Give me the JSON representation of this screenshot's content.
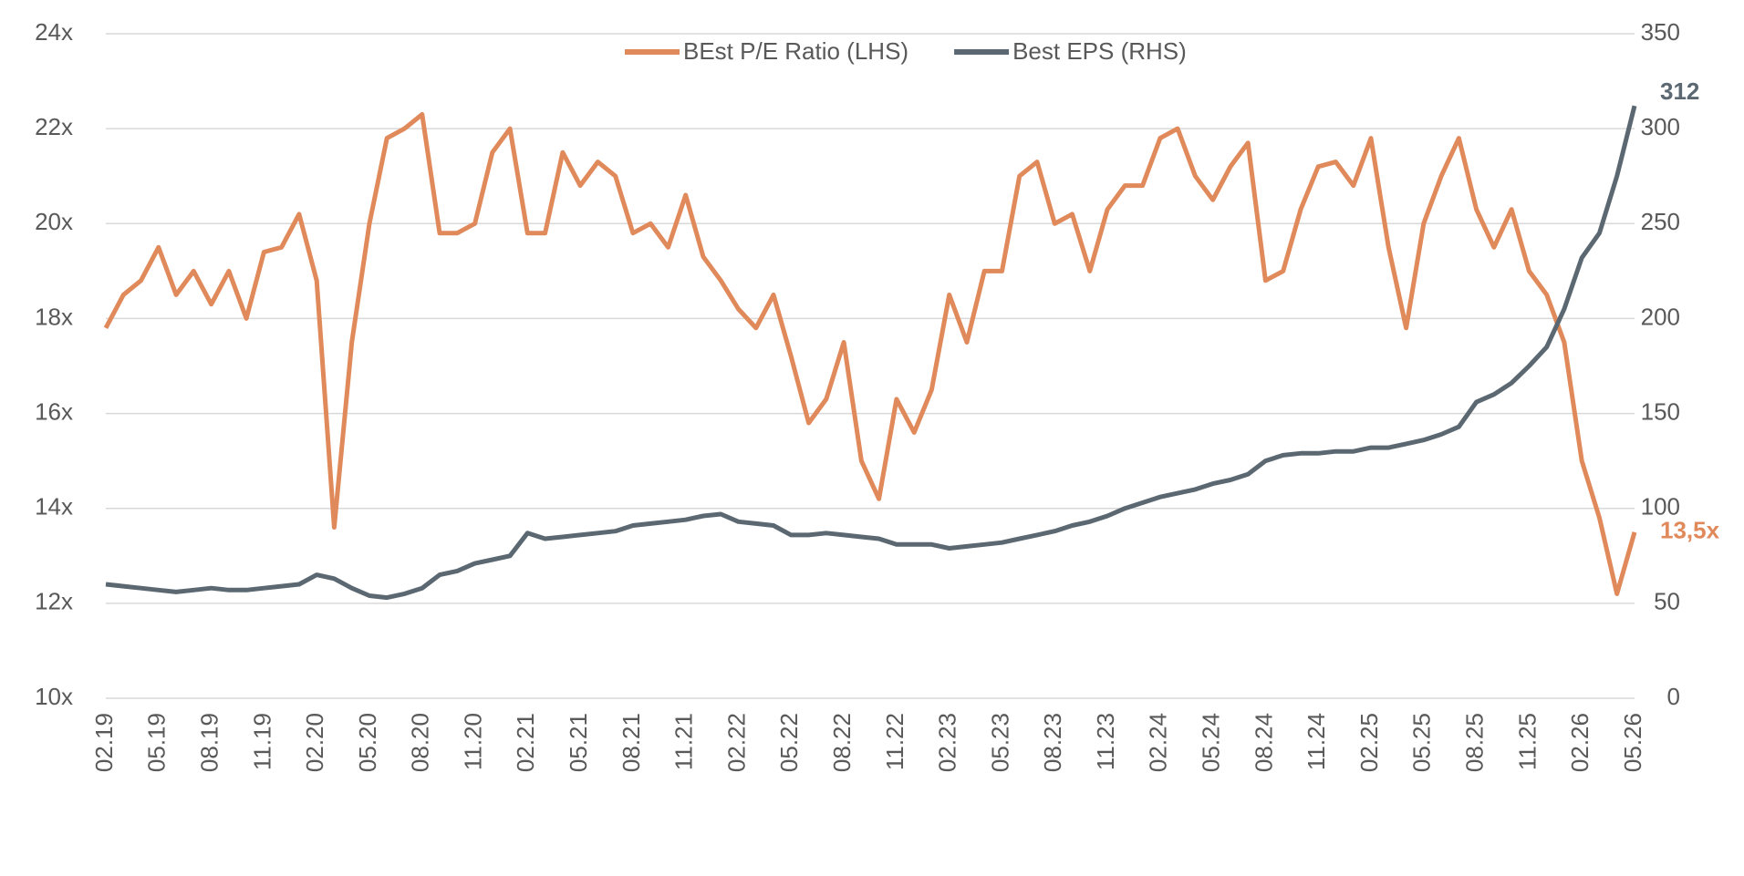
{
  "chart_data": {
    "type": "line",
    "categories": [
      "02.19",
      null,
      null,
      "05.19",
      null,
      null,
      "08.19",
      null,
      null,
      "11.19",
      null,
      null,
      "02.20",
      null,
      null,
      "05.20",
      null,
      null,
      "08.20",
      null,
      null,
      "11.20",
      null,
      null,
      "02.21",
      null,
      null,
      "05.21",
      null,
      null,
      "08.21",
      null,
      null,
      "11.21",
      null,
      null,
      "02.22",
      null,
      null,
      "05.22",
      null,
      null,
      "08.22",
      null,
      null,
      "11.22",
      null,
      null,
      "02.23",
      null,
      null,
      "05.23",
      null,
      null,
      "08.23",
      null,
      null,
      "11.23",
      null,
      null,
      "02.24",
      null,
      null,
      "05.24",
      null,
      null,
      "08.24",
      null,
      null,
      "11.24",
      null,
      null,
      "02.25",
      null,
      null,
      "05.25",
      null,
      null,
      "08.25",
      null,
      null,
      "11.25",
      null,
      null,
      "02.26",
      null,
      null,
      "05.26"
    ],
    "series": [
      {
        "name": "BEst P/E Ratio (LHS)",
        "color": "#e0895a",
        "axis": "y",
        "values": [
          17.8,
          18.5,
          18.8,
          19.5,
          18.5,
          19.0,
          18.3,
          19.0,
          18.0,
          19.4,
          19.5,
          20.2,
          18.8,
          13.6,
          17.5,
          20.0,
          21.8,
          22.0,
          22.3,
          19.8,
          19.8,
          20.0,
          21.5,
          22.0,
          19.8,
          19.8,
          21.5,
          20.8,
          21.3,
          21.0,
          19.8,
          20.0,
          19.5,
          20.6,
          19.3,
          18.8,
          18.2,
          17.8,
          18.5,
          17.2,
          15.8,
          16.3,
          17.5,
          15.0,
          14.2,
          16.3,
          15.6,
          16.5,
          18.5,
          17.5,
          19.0,
          19.0,
          21.0,
          21.3,
          20.0,
          20.2,
          19.0,
          20.3,
          20.8,
          20.8,
          21.8,
          22.0,
          21.0,
          20.5,
          21.2,
          21.7,
          18.8,
          19.0,
          20.3,
          21.2,
          21.3,
          20.8,
          21.8,
          19.5,
          17.8,
          20.0,
          21.0,
          21.8,
          20.3,
          19.5,
          20.3,
          19.0,
          18.5,
          17.5,
          15.0,
          13.8,
          12.2,
          13.5
        ],
        "value_labels": [
          null,
          null,
          null,
          null,
          null,
          null,
          null,
          null,
          null,
          null,
          null,
          null,
          null,
          null,
          null,
          null,
          null,
          null,
          null,
          null,
          null,
          null,
          null,
          null,
          null,
          null,
          null,
          null,
          null,
          null,
          null,
          null,
          null,
          null,
          null,
          null,
          null,
          null,
          null,
          null,
          null,
          null,
          null,
          null,
          null,
          null,
          null,
          null,
          null,
          null,
          null,
          null,
          null,
          null,
          null,
          null,
          null,
          null,
          null,
          null,
          null,
          null,
          null,
          null,
          null,
          null,
          null,
          null,
          null,
          null,
          null,
          null,
          null,
          null,
          null,
          null,
          null,
          null,
          null,
          null,
          null,
          null,
          null,
          null,
          null,
          null,
          null,
          "13,5x"
        ]
      },
      {
        "name": "Best EPS (RHS)",
        "color": "#5b6872",
        "axis": "y2",
        "values": [
          60,
          59,
          58,
          57,
          56,
          57,
          58,
          57,
          57,
          58,
          59,
          60,
          65,
          63,
          58,
          54,
          53,
          55,
          58,
          65,
          67,
          71,
          73,
          75,
          87,
          84,
          85,
          86,
          87,
          88,
          91,
          92,
          93,
          94,
          96,
          97,
          93,
          92,
          91,
          86,
          86,
          87,
          86,
          85,
          84,
          81,
          81,
          81,
          79,
          80,
          81,
          82,
          84,
          86,
          88,
          91,
          93,
          96,
          100,
          103,
          106,
          108,
          110,
          113,
          115,
          118,
          125,
          128,
          129,
          129,
          130,
          130,
          132,
          132,
          134,
          136,
          139,
          143,
          156,
          160,
          166,
          175,
          185,
          205,
          232,
          245,
          275,
          312
        ]
      }
    ],
    "ylim": [
      10,
      24
    ],
    "yticks": [
      {
        "value": 10,
        "label": "10x"
      },
      {
        "value": 12,
        "label": "12x"
      },
      {
        "value": 14,
        "label": "14x"
      },
      {
        "value": 16,
        "label": "16x"
      },
      {
        "value": 18,
        "label": "18x"
      },
      {
        "value": 20,
        "label": "20x"
      },
      {
        "value": 22,
        "label": "22x"
      },
      {
        "value": 24,
        "label": "24x"
      }
    ],
    "y2lim": [
      0,
      350
    ],
    "y2ticks": [
      0,
      50,
      100,
      150,
      200,
      250,
      300,
      350
    ],
    "grid": true,
    "legend": "top"
  }
}
